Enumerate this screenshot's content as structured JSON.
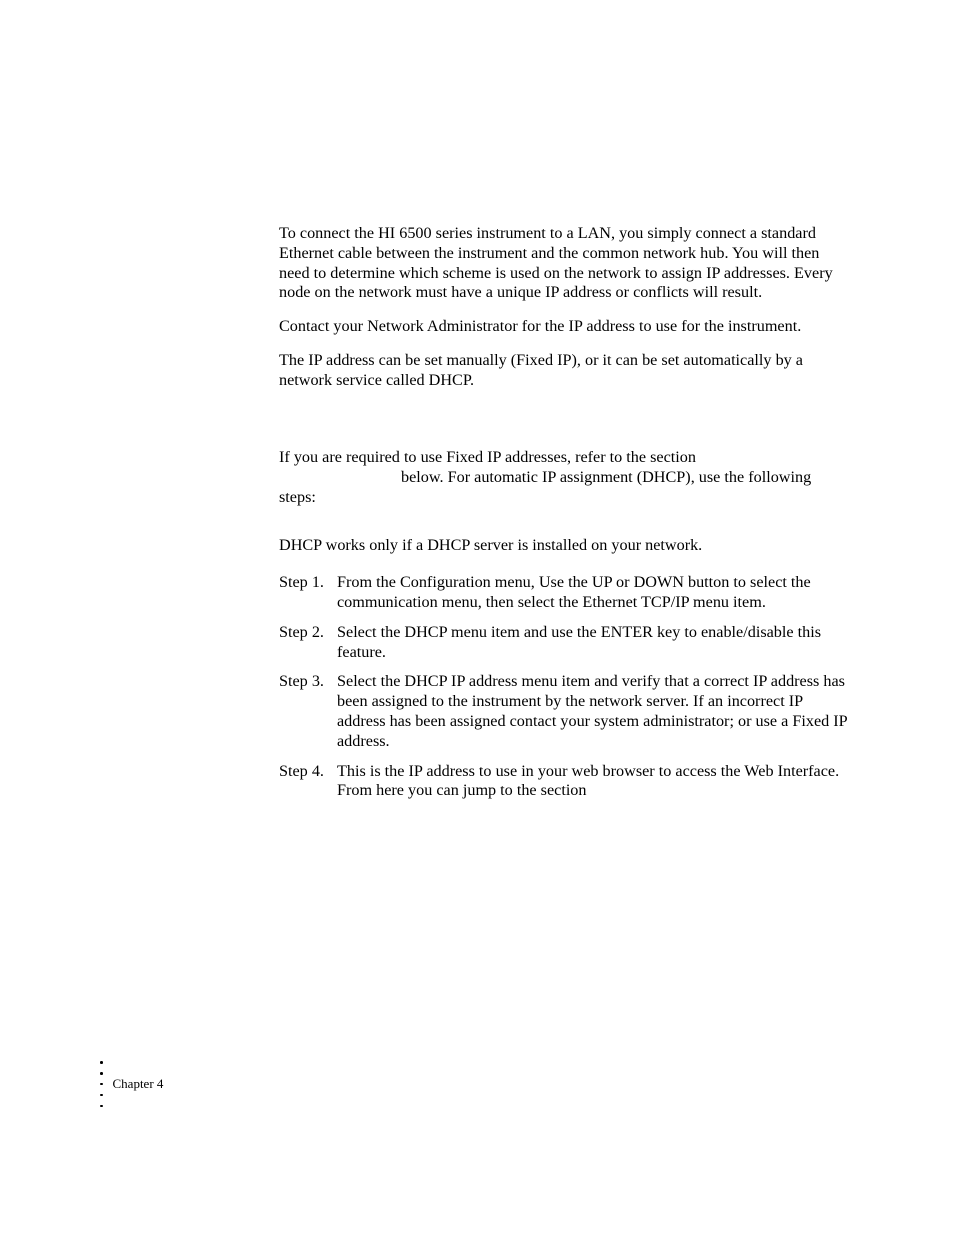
{
  "body": {
    "p1": "To connect the HI 6500 series instrument to a LAN, you simply connect a standard Ethernet cable between the instrument and the common network hub. You will then need to determine which scheme is used on the network to assign IP addresses. Every node on the network must have a unique IP address or conflicts will result.",
    "p2": "Contact your Network Administrator for the IP address to use for the instrument.",
    "p3": "The IP address can be set manually (Fixed IP), or it can be set automatically by a network service called DHCP.",
    "p4a": "If you are required to use Fixed IP addresses, refer to the section ",
    "p4b": " below. For automatic IP assignment (DHCP), use the following steps:",
    "p5": "DHCP works only if a DHCP server is installed on your network."
  },
  "steps": [
    {
      "label": "Step 1.",
      "text": "From the Configuration menu, Use the UP or DOWN button to select the communication menu, then select the Ethernet TCP/IP menu item."
    },
    {
      "label": "Step 2.",
      "text": "Select the DHCP menu item and use the ENTER key to enable/disable this feature."
    },
    {
      "label": "Step 3.",
      "text": "Select the DHCP IP address menu item and verify that a correct IP address has been assigned to the instrument by the network server. If an incorrect IP address has been assigned contact your system administrator; or use a Fixed IP address."
    },
    {
      "label": "Step 4.",
      "text": "This is the IP address to use in your web browser to access the Web Interface. From here you can jump to the section"
    }
  ],
  "footer": {
    "chapter": "Chapter 4"
  }
}
